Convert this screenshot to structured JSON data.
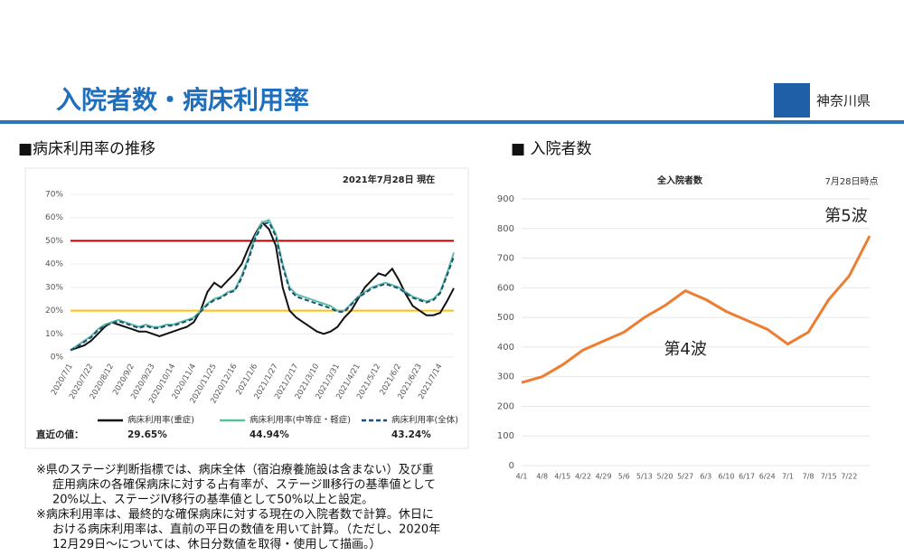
{
  "header": {
    "title": "入院者数・病床利用率",
    "logo_text": "神奈川県"
  },
  "sections": [
    "■病床利用率の推移",
    "■ 入院者数"
  ],
  "chart_data": [
    {
      "type": "line",
      "annotation": "2021年7月28日 現在",
      "recent_label": "直近の値：",
      "categories": [
        "2020/7/1",
        null,
        null,
        "2020/7/22",
        null,
        null,
        "2020/8/12",
        null,
        null,
        "2020/9/2",
        null,
        null,
        "2020/9/23",
        null,
        null,
        "2020/10/14",
        null,
        null,
        "2020/11/4",
        null,
        null,
        "2020/11/25",
        null,
        null,
        "2020/12/16",
        null,
        null,
        "2021/1/6",
        null,
        null,
        "2021/1/27",
        null,
        null,
        "2021/2/17",
        null,
        null,
        "2021/3/10",
        null,
        null,
        "2021/3/31",
        null,
        null,
        "2021/4/21",
        null,
        null,
        "2021/5/12",
        null,
        null,
        "2021/6/2",
        null,
        null,
        "2021/6/23",
        null,
        null,
        "2021/7/14",
        null,
        null
      ],
      "ylim": [
        0,
        70
      ],
      "yticks": [
        {
          "value": 0,
          "label": "0%"
        },
        {
          "value": 10,
          "label": "10%"
        },
        {
          "value": 20,
          "label": "20%"
        },
        {
          "value": 30,
          "label": "30%"
        },
        {
          "value": 40,
          "label": "40%"
        },
        {
          "value": 50,
          "label": "50%"
        },
        {
          "value": 60,
          "label": "60%"
        },
        {
          "value": 70,
          "label": "70%"
        }
      ],
      "ref_lines": [
        {
          "value": 50,
          "color": "#c00000"
        },
        {
          "value": 20,
          "color": "#ffc000"
        }
      ],
      "series": [
        {
          "name": "病床利用率(重症)",
          "color": "#111111",
          "dash": false,
          "values": [
            3,
            4,
            5,
            7,
            10,
            13,
            15,
            14,
            13,
            12,
            11,
            11,
            10,
            9,
            10,
            11,
            12,
            13,
            15,
            20,
            28,
            32,
            30,
            33,
            36,
            40,
            47,
            53,
            58,
            55,
            48,
            30,
            20,
            17,
            15,
            13,
            11,
            10,
            11,
            13,
            17,
            20,
            25,
            30,
            33,
            36,
            35,
            38,
            33,
            27,
            22,
            20,
            18,
            18,
            19,
            24,
            29.65
          ],
          "value_labels": [
            null,
            null,
            null,
            null,
            null,
            null,
            null,
            null,
            null,
            null,
            null,
            null,
            null,
            null,
            null,
            null,
            null,
            null,
            null,
            null,
            null,
            null,
            null,
            null,
            null,
            null,
            null,
            null,
            null,
            null,
            null,
            null,
            null,
            null,
            null,
            null,
            null,
            null,
            null,
            null,
            null,
            null,
            null,
            null,
            null,
            null,
            null,
            null,
            null,
            null,
            null,
            null,
            null,
            null,
            null,
            null,
            "29.65%"
          ]
        },
        {
          "name": "病床利用率(中等症・軽症)",
          "color": "#5bbfa0",
          "dash": false,
          "values": [
            3,
            5,
            7,
            9,
            12,
            14,
            15,
            16,
            15,
            14,
            13,
            14,
            13,
            13,
            14,
            14,
            15,
            16,
            17,
            20,
            23,
            25,
            26,
            28,
            29,
            35,
            43,
            52,
            58,
            59,
            53,
            40,
            30,
            27,
            26,
            25,
            24,
            23,
            22,
            20,
            20,
            23,
            26,
            28,
            30,
            31,
            32,
            31,
            30,
            28,
            26,
            25,
            24,
            25,
            28,
            36,
            44.94
          ],
          "value_labels": [
            null,
            null,
            null,
            null,
            null,
            null,
            null,
            null,
            null,
            null,
            null,
            null,
            null,
            null,
            null,
            null,
            null,
            null,
            null,
            null,
            null,
            null,
            null,
            null,
            null,
            null,
            null,
            null,
            null,
            null,
            null,
            null,
            null,
            null,
            null,
            null,
            null,
            null,
            null,
            null,
            null,
            null,
            null,
            null,
            null,
            null,
            null,
            null,
            null,
            null,
            null,
            null,
            null,
            null,
            null,
            null,
            "44.94%"
          ]
        },
        {
          "name": "病床利用率(全体)",
          "color": "#1f4e79",
          "dash": true,
          "values": [
            3,
            4.5,
            6.5,
            8.5,
            11.5,
            13.5,
            14.5,
            15.5,
            14.5,
            13.5,
            12.5,
            13.5,
            12.5,
            12.5,
            13.5,
            13.5,
            14.5,
            15.5,
            16.5,
            19.5,
            22.5,
            24.5,
            25.5,
            27.5,
            28.5,
            34,
            42,
            51,
            57,
            58,
            52,
            39,
            29,
            26,
            25,
            24,
            23,
            22,
            21,
            19.5,
            19.5,
            22.5,
            25.5,
            27.5,
            29.5,
            30.5,
            31.5,
            30.5,
            29.5,
            27.5,
            25.5,
            24.5,
            23.5,
            24.5,
            27.5,
            35,
            43.24
          ],
          "value_labels": [
            null,
            null,
            null,
            null,
            null,
            null,
            null,
            null,
            null,
            null,
            null,
            null,
            null,
            null,
            null,
            null,
            null,
            null,
            null,
            null,
            null,
            null,
            null,
            null,
            null,
            null,
            null,
            null,
            null,
            null,
            null,
            null,
            null,
            null,
            null,
            null,
            null,
            null,
            null,
            null,
            null,
            null,
            null,
            null,
            null,
            null,
            null,
            null,
            null,
            null,
            null,
            null,
            null,
            null,
            null,
            null,
            "43.24%"
          ]
        }
      ]
    },
    {
      "type": "line",
      "title": "全入院者数",
      "annotation": "7月28日時点",
      "categories": [
        "4/1",
        "4/8",
        "4/15",
        "4/22",
        "4/29",
        "5/6",
        "5/13",
        "5/20",
        "5/27",
        "6/3",
        "6/10",
        "6/17",
        "6/24",
        "7/1",
        "7/8",
        "7/15",
        "7/22",
        null
      ],
      "ylim": [
        0,
        900
      ],
      "yticks": [
        0,
        100,
        200,
        300,
        400,
        500,
        600,
        700,
        800,
        900
      ],
      "grid": true,
      "series": [
        {
          "color": "#ed7d31",
          "values": [
            280,
            300,
            340,
            390,
            420,
            450,
            500,
            540,
            590,
            560,
            520,
            490,
            460,
            410,
            450,
            560,
            640,
            775
          ]
        }
      ],
      "labels": [
        {
          "text": "第4波",
          "x_index": 8,
          "y": 390
        },
        {
          "text": "第5波",
          "x_index": 17,
          "y": 840
        }
      ]
    }
  ],
  "notes": [
    "※県のステージ判断指標では、病床全体（宿泊療養施設は含まない）及び重",
    "症用病床の各確保病床に対する占有率が、ステージⅢ移行の基準値として",
    "20%以上、ステージⅣ移行の基準値として50%以上と設定。",
    "※病床利用率は、最終的な確保病床に対する現在の入院者数で計算。休日に",
    "おける病床利用率は、直前の平日の数値を用いて計算。（ただし、2020年",
    "12月29日～については、休日分数値を取得・使用して描画。）"
  ]
}
